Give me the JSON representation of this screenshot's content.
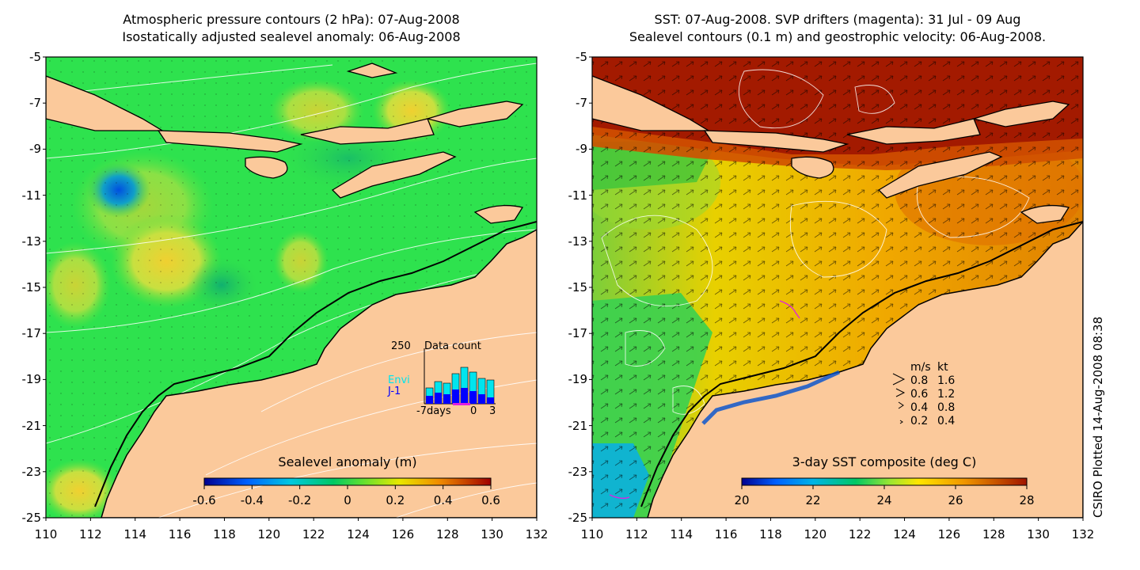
{
  "left_panel": {
    "title_line1": "Atmospheric pressure contours (2 hPa): 07-Aug-2008",
    "title_line2": "Isostatically adjusted sealevel anomaly: 06-Aug-2008",
    "colorbar_label": "Sealevel anomaly (m)",
    "colorbar_ticks": [
      "-0.6",
      "-0.4",
      "-0.2",
      "0",
      "0.2",
      "0.4",
      "0.6"
    ],
    "inset": {
      "y_max_label": "250",
      "title": "Data count",
      "series_envi": "Envi",
      "series_j1": "J-1",
      "x_label_left": "-7days",
      "x_label_zero": "0",
      "x_label_right": "3",
      "envi_color": "#00e5ee",
      "j1_color": "#0000ff"
    }
  },
  "right_panel": {
    "title_line1": "SST: 07-Aug-2008. SVP drifters (magenta): 31 Jul - 09 Aug",
    "title_line2": "Sealevel contours (0.1 m) and geostrophic velocity: 06-Aug-2008.",
    "colorbar_label": "3-day SST composite (deg C)",
    "colorbar_ticks": [
      "20",
      "22",
      "24",
      "26",
      "28"
    ],
    "legend": {
      "header_ms": "m/s",
      "header_kt": "kt",
      "rows": [
        {
          "ms": "0.8",
          "kt": "1.6"
        },
        {
          "ms": "0.6",
          "kt": "1.2"
        },
        {
          "ms": "0.4",
          "kt": "0.8"
        },
        {
          "ms": "0.2",
          "kt": "0.4"
        }
      ]
    }
  },
  "axes": {
    "lat_ticks": [
      "-5",
      "-7",
      "-9",
      "-11",
      "-13",
      "-15",
      "-17",
      "-19",
      "-21",
      "-23",
      "-25"
    ],
    "lon_ticks": [
      "110",
      "112",
      "114",
      "116",
      "118",
      "120",
      "122",
      "124",
      "126",
      "128",
      "130",
      "132"
    ]
  },
  "side_label": "CSIRO Plotted 14-Aug-2008 08:38",
  "colors": {
    "land": "#fbc99b",
    "ocean_sla": "#2ee24e",
    "sst_warm": "#f0a000",
    "sst_hot": "#a01a00"
  }
}
